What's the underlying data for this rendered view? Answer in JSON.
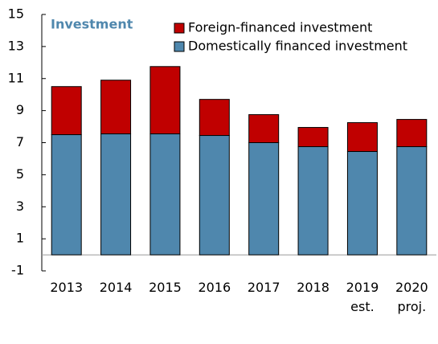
{
  "chart_data": {
    "type": "stacked_bar",
    "title": "Investment",
    "categories": [
      "2013",
      "2014",
      "2015",
      "2016",
      "2017",
      "2018",
      "2019\nest.",
      "2020\nproj."
    ],
    "series": [
      {
        "name": "Domestically financed investment",
        "color": "#4f87ad",
        "values": [
          7.5,
          7.55,
          7.55,
          7.45,
          7.0,
          6.75,
          6.45,
          6.75
        ]
      },
      {
        "name": "Foreign-financed investment",
        "color": "#c00000",
        "values": [
          3.0,
          3.35,
          4.2,
          2.25,
          1.75,
          1.2,
          1.8,
          1.7
        ]
      }
    ],
    "ylim": [
      -1,
      15
    ],
    "yticks": [
      -1,
      1,
      3,
      5,
      7,
      9,
      11,
      13,
      15
    ],
    "legend": "top-right"
  }
}
